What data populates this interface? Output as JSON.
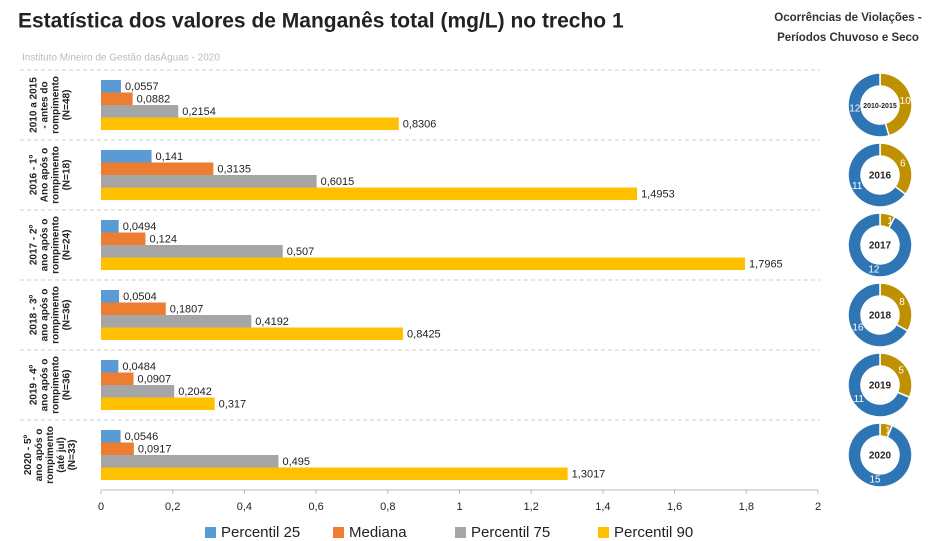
{
  "chart_data": [
    {
      "type": "hbar",
      "title": "Estatística dos valores de Manganês total (mg/L) no trecho 1",
      "subtitle": "Instituto Mineiro de Gestão dasÁguas - 2020",
      "categories": [
        "2010 a 2015\n- antes do\nrompimento\n(N=48)",
        "2016 - 1º\nAno após o\nrompimento\n(N=18)",
        "2017 - 2º\nano após o\nrompimento\n(N=24)",
        "2018 - 3º\nano após o\nrompimento\n(N=36)",
        "2019 - 4º\nano após o\nrompimento\n(N=36)",
        "2020 - 5º\nano após o\nrompimento\n(até jul)\n(N=33)"
      ],
      "series": [
        {
          "name": "Percentil 25",
          "color": "#5b9bd5",
          "values": [
            0.0557,
            0.141,
            0.0494,
            0.0504,
            0.0484,
            0.0546
          ],
          "value_labels": [
            "0,0557",
            "0,141",
            "0,0494",
            "0,0504",
            "0,0484",
            "0,0546"
          ]
        },
        {
          "name": "Mediana",
          "color": "#ed7d31",
          "values": [
            0.0882,
            0.3135,
            0.124,
            0.1807,
            0.0907,
            0.0917
          ],
          "value_labels": [
            "0,0882",
            "0,3135",
            "0,124",
            "0,1807",
            "0,0907",
            "0,0917"
          ]
        },
        {
          "name": "Percentil 75",
          "color": "#a5a5a5",
          "values": [
            0.2154,
            0.6015,
            0.507,
            0.4192,
            0.2042,
            0.495
          ],
          "value_labels": [
            "0,2154",
            "0,6015",
            "0,507",
            "0,4192",
            "0,2042",
            "0,495"
          ]
        },
        {
          "name": "Percentil 90",
          "color": "#ffc000",
          "values": [
            0.8306,
            1.4953,
            1.7965,
            0.8425,
            0.317,
            1.3017
          ],
          "value_labels": [
            "0,8306",
            "1,4953",
            "1,7965",
            "0,8425",
            "0,317",
            "1,3017"
          ]
        }
      ],
      "xlim": [
        0,
        2
      ],
      "xticks": [
        0,
        {
          "value": 0.2,
          "label": "0,2"
        },
        {
          "value": 0.4,
          "label": "0,4"
        },
        {
          "value": 0.6,
          "label": "0,6"
        },
        {
          "value": 0.8,
          "label": "0,8"
        },
        1,
        {
          "value": 1.2,
          "label": "1,2"
        },
        {
          "value": 1.4,
          "label": "1,4"
        },
        {
          "value": 1.6,
          "label": "1,6"
        },
        {
          "value": 1.8,
          "label": "1,8"
        },
        2
      ],
      "legend": "bottom"
    },
    {
      "type": "donut",
      "title": "Ocorrências de Violações -\nPeríodos Chuvoso e Seco",
      "colors": [
        "#2e75b6",
        "#bf9000"
      ],
      "items": [
        {
          "label": "2010-2015",
          "values": [
            12,
            10
          ]
        },
        {
          "label": "2016",
          "values": [
            11,
            6
          ]
        },
        {
          "label": "2017",
          "values": [
            12,
            1
          ]
        },
        {
          "label": "2018",
          "values": [
            16,
            8
          ]
        },
        {
          "label": "2019",
          "values": [
            11,
            5
          ]
        },
        {
          "label": "2020",
          "values": [
            15,
            1
          ]
        }
      ]
    }
  ]
}
